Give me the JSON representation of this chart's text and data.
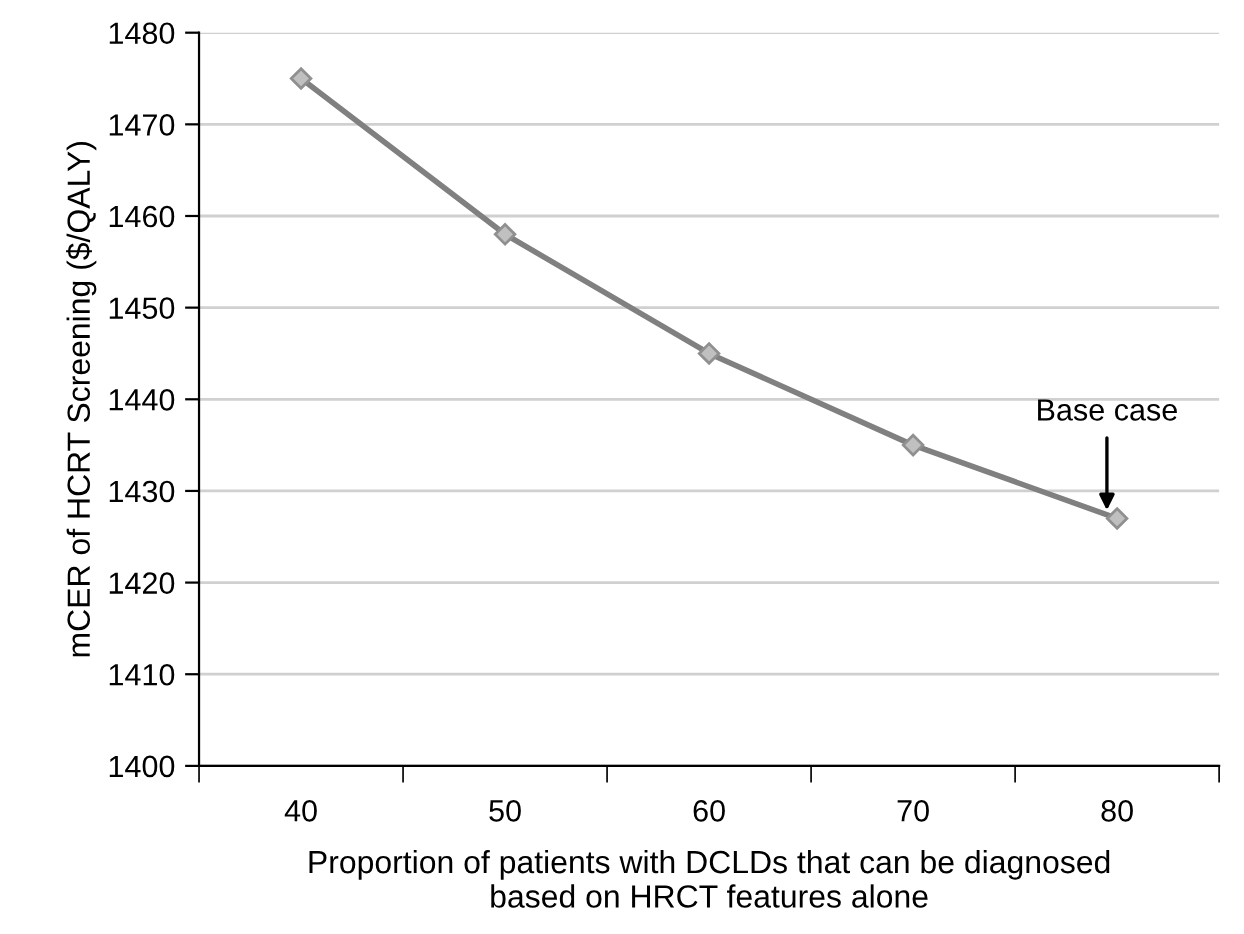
{
  "chart_data": {
    "type": "line",
    "xlabel": "Proportion of patients with DCLDs that can be diagnosed\nbased on HRCT features alone",
    "ylabel": "mCER of HCRT Screening ($/QALY)",
    "categories": [
      "40",
      "50",
      "60",
      "70",
      "80"
    ],
    "series": [
      {
        "color": "#808080",
        "values": [
          1475,
          1458,
          1445,
          1435,
          1427
        ]
      }
    ],
    "ylim": [
      1400,
      1480
    ],
    "yticks": [
      1400,
      1410,
      1420,
      1430,
      1440,
      1450,
      1460,
      1470,
      1480
    ],
    "grid": "y",
    "marker": "diamond",
    "line_style": "solid",
    "annotations": [
      {
        "text": "Base case",
        "x": "80",
        "y": 1427
      }
    ]
  }
}
